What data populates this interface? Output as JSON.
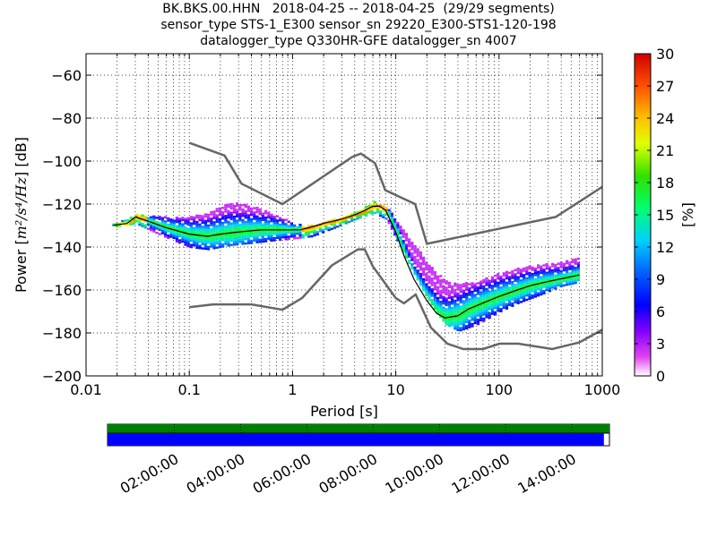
{
  "title_lines": [
    "BK.BKS.00.HHN   2018-04-25 -- 2018-04-25  (29/29 segments)",
    "sensor_type STS-1_E300 sensor_sn 29220_E300-STS1-120-198",
    "datalogger_type Q330HR-GFE datalogger_sn 4007"
  ],
  "chart_data": {
    "type": "heatmap",
    "xlabel": "Period [s]",
    "ylabel_prefix": "Power [",
    "ylabel_math": "m²/s⁴/Hz",
    "ylabel_suffix": "] [dB]",
    "xscale": "log",
    "xlim": [
      0.01,
      1000
    ],
    "ylim": [
      -200,
      -50
    ],
    "x_tick_values": [
      0.01,
      0.1,
      1,
      10,
      100,
      1000
    ],
    "x_tick_labels": [
      "0.01",
      "0.1",
      "1",
      "10",
      "100",
      "1000"
    ],
    "y_tick_values": [
      -200,
      -180,
      -160,
      -140,
      -120,
      -100,
      -80,
      -60
    ],
    "y_tick_labels": [
      "−200",
      "−180",
      "−160",
      "−140",
      "−120",
      "−100",
      "−80",
      "−60"
    ],
    "grid": true,
    "colorbar": {
      "label": "[%]",
      "range": [
        0,
        30
      ],
      "tick_values": [
        0,
        3,
        6,
        9,
        12,
        15,
        18,
        21,
        24,
        27,
        30
      ],
      "tick_labels": [
        "0",
        "3",
        "6",
        "9",
        "12",
        "15",
        "18",
        "21",
        "24",
        "27",
        "30"
      ]
    },
    "noise_models": [
      {
        "x": [
          0.1,
          0.22,
          0.32,
          0.8,
          3.8,
          4.6,
          6.3,
          7.9,
          15.4,
          20,
          354,
          1000
        ],
        "y": [
          -91.5,
          -97.4,
          -110.5,
          -120,
          -98,
          -96.5,
          -101,
          -113.5,
          -120,
          -138.5,
          -126,
          -112
        ]
      },
      {
        "x": [
          0.1,
          0.17,
          0.4,
          0.8,
          1.24,
          2.4,
          4.3,
          5,
          6,
          10,
          12,
          15.6,
          21.9,
          31.6,
          45,
          70,
          101,
          154,
          328,
          600,
          1000
        ],
        "y": [
          -168,
          -166.7,
          -166.7,
          -169.2,
          -163.7,
          -148.6,
          -141.1,
          -141.1,
          -149,
          -163.8,
          -166.2,
          -162.1,
          -177.5,
          -185,
          -187.5,
          -187.5,
          -185,
          -185,
          -187.5,
          -184.4,
          -178.5
        ]
      }
    ],
    "median": {
      "x": [
        0.018,
        0.025,
        0.03,
        0.04,
        0.06,
        0.1,
        0.15,
        0.2,
        0.3,
        0.5,
        0.8,
        1.2,
        2,
        3,
        4,
        5,
        6,
        7,
        8,
        10,
        12,
        15,
        20,
        25,
        30,
        40,
        50,
        70,
        100,
        150,
        200,
        300,
        600
      ],
      "y": [
        -130,
        -129,
        -126,
        -128,
        -131,
        -134,
        -135,
        -134,
        -133,
        -132,
        -132,
        -132,
        -129,
        -127,
        -125,
        -123,
        -121,
        -121,
        -123,
        -133,
        -144,
        -155,
        -165,
        -171,
        -173,
        -172,
        -169,
        -166,
        -163,
        -160,
        -158,
        -156,
        -153
      ]
    },
    "density_summary": [
      {
        "x": 0.018,
        "lo": -130.5,
        "hi": -129.5
      },
      {
        "x": 0.03,
        "lo": -129,
        "hi": -125
      },
      {
        "x": 0.05,
        "lo": -134,
        "hi": -126
      },
      {
        "x": 0.1,
        "lo": -140,
        "hi": -126
      },
      {
        "x": 0.15,
        "lo": -141,
        "hi": -124
      },
      {
        "x": 0.25,
        "lo": -139,
        "hi": -119
      },
      {
        "x": 0.4,
        "lo": -138,
        "hi": -121
      },
      {
        "x": 0.6,
        "lo": -137,
        "hi": -124
      },
      {
        "x": 1,
        "lo": -136,
        "hi": -129
      },
      {
        "x": 1.5,
        "lo": -135,
        "hi": -130
      },
      {
        "x": 2.5,
        "lo": -131,
        "hi": -127
      },
      {
        "x": 4,
        "lo": -127,
        "hi": -124
      },
      {
        "x": 6,
        "lo": -124,
        "hi": -119
      },
      {
        "x": 8,
        "lo": -127,
        "hi": -121
      },
      {
        "x": 12,
        "lo": -144,
        "hi": -132
      },
      {
        "x": 15,
        "lo": -153,
        "hi": -139
      },
      {
        "x": 20,
        "lo": -164,
        "hi": -147
      },
      {
        "x": 25,
        "lo": -171,
        "hi": -152
      },
      {
        "x": 30,
        "lo": -176,
        "hi": -156
      },
      {
        "x": 40,
        "lo": -179,
        "hi": -157
      },
      {
        "x": 60,
        "lo": -176,
        "hi": -156
      },
      {
        "x": 100,
        "lo": -170,
        "hi": -152
      },
      {
        "x": 150,
        "lo": -166,
        "hi": -150
      },
      {
        "x": 250,
        "lo": -162,
        "hi": -148
      },
      {
        "x": 400,
        "lo": -158,
        "hi": -147
      },
      {
        "x": 630,
        "lo": -156,
        "hi": -144
      }
    ]
  },
  "timeline": {
    "tick_labels": [
      "02:00:00",
      "04:00:00",
      "06:00:00",
      "08:00:00",
      "10:00:00",
      "12:00:00",
      "14:00:00"
    ],
    "tick_fraction": [
      0.133,
      0.265,
      0.397,
      0.529,
      0.661,
      0.793,
      0.925
    ],
    "data_fraction": 0.989,
    "gap_color": "#ffffff",
    "availability_color": "#008000",
    "coverage_color": "#0000ff"
  },
  "colors": {
    "noise_model": "#666666",
    "median": "#000000"
  }
}
